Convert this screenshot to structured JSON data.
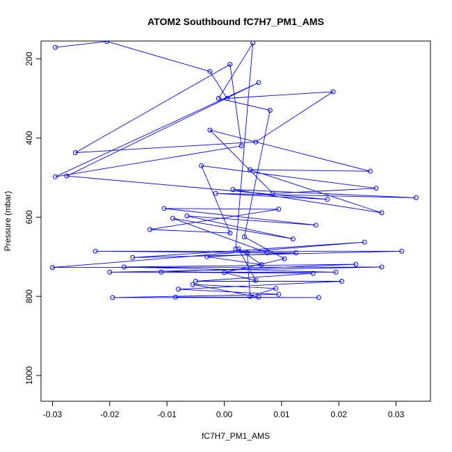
{
  "chart_data": {
    "type": "line",
    "title": "ATOM2 Southbound fC7H7_PM1_AMS",
    "xlabel": "fC7H7_PM1_AMS",
    "ylabel": "Pressure (mbar)",
    "xlim": [
      -0.032,
      0.036
    ],
    "ylim": [
      1065,
      155
    ],
    "y_reversed": true,
    "x_ticks": [
      -0.03,
      -0.02,
      -0.01,
      0.0,
      0.01,
      0.02,
      0.03
    ],
    "x_tick_labels": [
      "-0.03",
      "-0.02",
      "-0.01",
      "0.00",
      "0.01",
      "0.02",
      "0.03"
    ],
    "y_ticks": [
      200,
      400,
      600,
      800,
      1000
    ],
    "y_tick_labels": [
      "200",
      "400",
      "600",
      "800",
      "1000"
    ],
    "grid": false,
    "legend": "none",
    "series": [
      {
        "color": "#0000ff",
        "marker": "open-circle",
        "points": [
          [
            -0.0295,
            171
          ],
          [
            -0.0205,
            156
          ],
          [
            -0.0025,
            232
          ],
          [
            0.0005,
            300
          ],
          [
            0.019,
            283
          ],
          [
            0.0055,
            410
          ],
          [
            -0.026,
            437
          ],
          [
            0.001,
            214
          ],
          [
            0.003,
            420
          ],
          [
            -0.0295,
            498
          ],
          [
            0.006,
            260
          ],
          [
            -0.0275,
            496
          ],
          [
            0.018,
            555
          ],
          [
            -0.0015,
            540
          ],
          [
            0.0335,
            551
          ],
          [
            0.0015,
            530
          ],
          [
            0.0275,
            589
          ],
          [
            0.0045,
            480
          ],
          [
            0.0255,
            484
          ],
          [
            -0.0025,
            380
          ],
          [
            0.0085,
            540
          ],
          [
            0.0265,
            527
          ],
          [
            -0.004,
            470
          ],
          [
            0.001,
            640
          ],
          [
            -0.013,
            631
          ],
          [
            0.0095,
            580
          ],
          [
            -0.0105,
            578
          ],
          [
            0.016,
            620
          ],
          [
            -0.0065,
            597
          ],
          [
            0.012,
            655
          ],
          [
            -0.009,
            603
          ],
          [
            0.0075,
            690
          ],
          [
            -0.0225,
            686
          ],
          [
            0.031,
            686
          ],
          [
            -0.016,
            702
          ],
          [
            0.0245,
            663
          ],
          [
            -0.03,
            727
          ],
          [
            0.0275,
            726
          ],
          [
            -0.02,
            739
          ],
          [
            0.0195,
            739
          ],
          [
            -0.0175,
            726
          ],
          [
            0.023,
            719
          ],
          [
            -0.011,
            739
          ],
          [
            0.0155,
            742
          ],
          [
            -0.005,
            762
          ],
          [
            0.0205,
            762
          ],
          [
            -0.008,
            782
          ],
          [
            0.0095,
            795
          ],
          [
            -0.0195,
            803
          ],
          [
            0.0165,
            803
          ],
          [
            -0.0085,
            802
          ],
          [
            0.006,
            802
          ],
          [
            -0.0055,
            770
          ],
          [
            0.009,
            780
          ],
          [
            0.0045,
            800
          ],
          [
            0.004,
            690
          ],
          [
            0.0125,
            690
          ],
          [
            -0.003,
            700
          ],
          [
            0.0065,
            720
          ],
          [
            0.0025,
            680
          ],
          [
            0.0055,
            760
          ],
          [
            0.0,
            740
          ],
          [
            0.0105,
            705
          ],
          [
            0.0035,
            650
          ],
          [
            0.008,
            330
          ],
          [
            -0.001,
            300
          ],
          [
            0.005,
            160
          ],
          [
            0.002,
            680
          ]
        ]
      }
    ]
  }
}
